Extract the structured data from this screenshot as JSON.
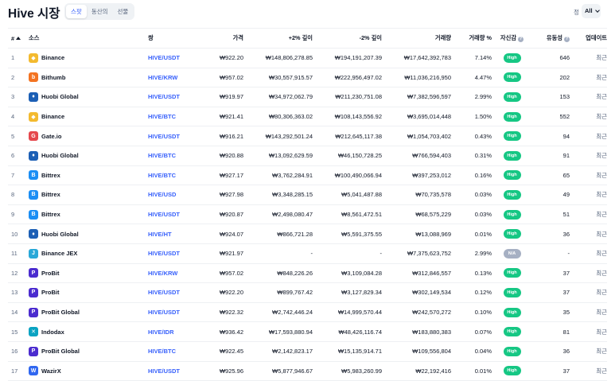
{
  "header": {
    "title": "Hive 시장",
    "tabs": [
      "스팟",
      "동산의",
      "선물"
    ],
    "active_tab": 0,
    "filter_label": "정",
    "filter_value": "All"
  },
  "columns": {
    "rank": "#",
    "source": "소스",
    "pair": "쌍",
    "price": "가격",
    "depth_plus": "+2% 깊이",
    "depth_minus": "-2% 깊이",
    "volume": "거래량",
    "volume_pct": "거래량 %",
    "confidence": "자신감",
    "liquidity": "유동성",
    "updated": "업데이트"
  },
  "colors": {
    "accent": "#3861fb",
    "high": "#16c784",
    "na": "#a6b0c3"
  },
  "rows": [
    {
      "rank": "1",
      "source": "Binance",
      "logo": "binance-logo",
      "logo_color": "#f3ba2f",
      "logo_glyph": "◆",
      "pair": "HIVE/USDT",
      "price": "₩922.20",
      "depth_plus": "₩148,806,278.85",
      "depth_minus": "₩194,191,207.39",
      "volume": "₩17,642,392,783",
      "volume_pct": "7.14%",
      "confidence": "High",
      "liquidity": "646",
      "updated": "최근"
    },
    {
      "rank": "2",
      "source": "Bithumb",
      "logo": "bithumb-logo",
      "logo_color": "#f37321",
      "logo_glyph": "b",
      "pair": "HIVE/KRW",
      "price": "₩957.02",
      "depth_plus": "₩30,557,915.57",
      "depth_minus": "₩222,956,497.02",
      "volume": "₩11,036,216,950",
      "volume_pct": "4.47%",
      "confidence": "High",
      "liquidity": "202",
      "updated": "최근"
    },
    {
      "rank": "3",
      "source": "Huobi Global",
      "logo": "huobi-logo",
      "logo_color": "#1c5fb5",
      "logo_glyph": "♦",
      "pair": "HIVE/USDT",
      "price": "₩919.97",
      "depth_plus": "₩34,972,062.79",
      "depth_minus": "₩211,230,751.08",
      "volume": "₩7,382,596,597",
      "volume_pct": "2.99%",
      "confidence": "High",
      "liquidity": "153",
      "updated": "최근"
    },
    {
      "rank": "4",
      "source": "Binance",
      "logo": "binance-logo",
      "logo_color": "#f3ba2f",
      "logo_glyph": "◆",
      "pair": "HIVE/BTC",
      "price": "₩921.41",
      "depth_plus": "₩80,306,363.02",
      "depth_minus": "₩108,143,556.92",
      "volume": "₩3,695,014,448",
      "volume_pct": "1.50%",
      "confidence": "High",
      "liquidity": "552",
      "updated": "최근"
    },
    {
      "rank": "5",
      "source": "Gate.io",
      "logo": "gateio-logo",
      "logo_color": "#e5484d",
      "logo_glyph": "G",
      "pair": "HIVE/USDT",
      "price": "₩916.21",
      "depth_plus": "₩143,292,501.24",
      "depth_minus": "₩212,645,117.38",
      "volume": "₩1,054,703,402",
      "volume_pct": "0.43%",
      "confidence": "High",
      "liquidity": "94",
      "updated": "최근"
    },
    {
      "rank": "6",
      "source": "Huobi Global",
      "logo": "huobi-logo",
      "logo_color": "#1c5fb5",
      "logo_glyph": "♦",
      "pair": "HIVE/BTC",
      "price": "₩920.88",
      "depth_plus": "₩13,092,629.59",
      "depth_minus": "₩46,150,728.25",
      "volume": "₩766,594,403",
      "volume_pct": "0.31%",
      "confidence": "High",
      "liquidity": "91",
      "updated": "최근"
    },
    {
      "rank": "7",
      "source": "Bittrex",
      "logo": "bittrex-logo",
      "logo_color": "#1b8ef4",
      "logo_glyph": "B",
      "pair": "HIVE/BTC",
      "price": "₩927.17",
      "depth_plus": "₩3,762,284.91",
      "depth_minus": "₩100,490,066.94",
      "volume": "₩397,253,012",
      "volume_pct": "0.16%",
      "confidence": "High",
      "liquidity": "65",
      "updated": "최근"
    },
    {
      "rank": "8",
      "source": "Bittrex",
      "logo": "bittrex-logo",
      "logo_color": "#1b8ef4",
      "logo_glyph": "B",
      "pair": "HIVE/USD",
      "price": "₩927.98",
      "depth_plus": "₩3,348,285.15",
      "depth_minus": "₩5,041,487.88",
      "volume": "₩70,735,578",
      "volume_pct": "0.03%",
      "confidence": "High",
      "liquidity": "49",
      "updated": "최근"
    },
    {
      "rank": "9",
      "source": "Bittrex",
      "logo": "bittrex-logo",
      "logo_color": "#1b8ef4",
      "logo_glyph": "B",
      "pair": "HIVE/USDT",
      "price": "₩920.87",
      "depth_plus": "₩2,498,080.47",
      "depth_minus": "₩8,561,472.51",
      "volume": "₩68,575,229",
      "volume_pct": "0.03%",
      "confidence": "High",
      "liquidity": "51",
      "updated": "최근"
    },
    {
      "rank": "10",
      "source": "Huobi Global",
      "logo": "huobi-logo",
      "logo_color": "#1c5fb5",
      "logo_glyph": "♦",
      "pair": "HIVE/HT",
      "price": "₩924.07",
      "depth_plus": "₩866,721.28",
      "depth_minus": "₩5,591,375.55",
      "volume": "₩13,088,969",
      "volume_pct": "0.01%",
      "confidence": "High",
      "liquidity": "36",
      "updated": "최근"
    },
    {
      "rank": "11",
      "source": "Binance JEX",
      "logo": "binance-jex-logo",
      "logo_color": "#29a8d8",
      "logo_glyph": "J",
      "pair": "HIVE/USDT",
      "price": "₩921.97",
      "depth_plus": "-",
      "depth_minus": "-",
      "volume": "₩7,375,623,752",
      "volume_pct": "2.99%",
      "confidence": "N/A",
      "liquidity": "-",
      "updated": "최근"
    },
    {
      "rank": "12",
      "source": "ProBit",
      "logo": "probit-logo",
      "logo_color": "#4b2ccf",
      "logo_glyph": "P",
      "pair": "HIVE/KRW",
      "price": "₩957.02",
      "depth_plus": "₩848,226.26",
      "depth_minus": "₩3,109,084.28",
      "volume": "₩312,846,557",
      "volume_pct": "0.13%",
      "confidence": "High",
      "liquidity": "37",
      "updated": "최근"
    },
    {
      "rank": "13",
      "source": "ProBit",
      "logo": "probit-logo",
      "logo_color": "#4b2ccf",
      "logo_glyph": "P",
      "pair": "HIVE/USDT",
      "price": "₩922.20",
      "depth_plus": "₩899,767.42",
      "depth_minus": "₩3,127,829.34",
      "volume": "₩302,149,534",
      "volume_pct": "0.12%",
      "confidence": "High",
      "liquidity": "37",
      "updated": "최근"
    },
    {
      "rank": "14",
      "source": "ProBit Global",
      "logo": "probit-logo",
      "logo_color": "#4b2ccf",
      "logo_glyph": "P",
      "pair": "HIVE/USDT",
      "price": "₩922.32",
      "depth_plus": "₩2,742,446.24",
      "depth_minus": "₩14,999,570.44",
      "volume": "₩242,570,272",
      "volume_pct": "0.10%",
      "confidence": "High",
      "liquidity": "35",
      "updated": "최근"
    },
    {
      "rank": "15",
      "source": "Indodax",
      "logo": "indodax-logo",
      "logo_color": "#0aa3c2",
      "logo_glyph": "✕",
      "pair": "HIVE/IDR",
      "price": "₩936.42",
      "depth_plus": "₩17,593,880.94",
      "depth_minus": "₩48,426,116.74",
      "volume": "₩183,880,383",
      "volume_pct": "0.07%",
      "confidence": "High",
      "liquidity": "81",
      "updated": "최근"
    },
    {
      "rank": "16",
      "source": "ProBit Global",
      "logo": "probit-logo",
      "logo_color": "#4b2ccf",
      "logo_glyph": "P",
      "pair": "HIVE/BTC",
      "price": "₩922.45",
      "depth_plus": "₩2,142,823.17",
      "depth_minus": "₩15,135,914.71",
      "volume": "₩109,556,804",
      "volume_pct": "0.04%",
      "confidence": "High",
      "liquidity": "36",
      "updated": "최근"
    },
    {
      "rank": "17",
      "source": "WazirX",
      "logo": "wazirx-logo",
      "logo_color": "#3067f0",
      "logo_glyph": "W",
      "pair": "HIVE/USDT",
      "price": "₩925.96",
      "depth_plus": "₩5,877,946.67",
      "depth_minus": "₩5,983,260.99",
      "volume": "₩22,192,416",
      "volume_pct": "0.01%",
      "confidence": "High",
      "liquidity": "37",
      "updated": "최근"
    }
  ]
}
